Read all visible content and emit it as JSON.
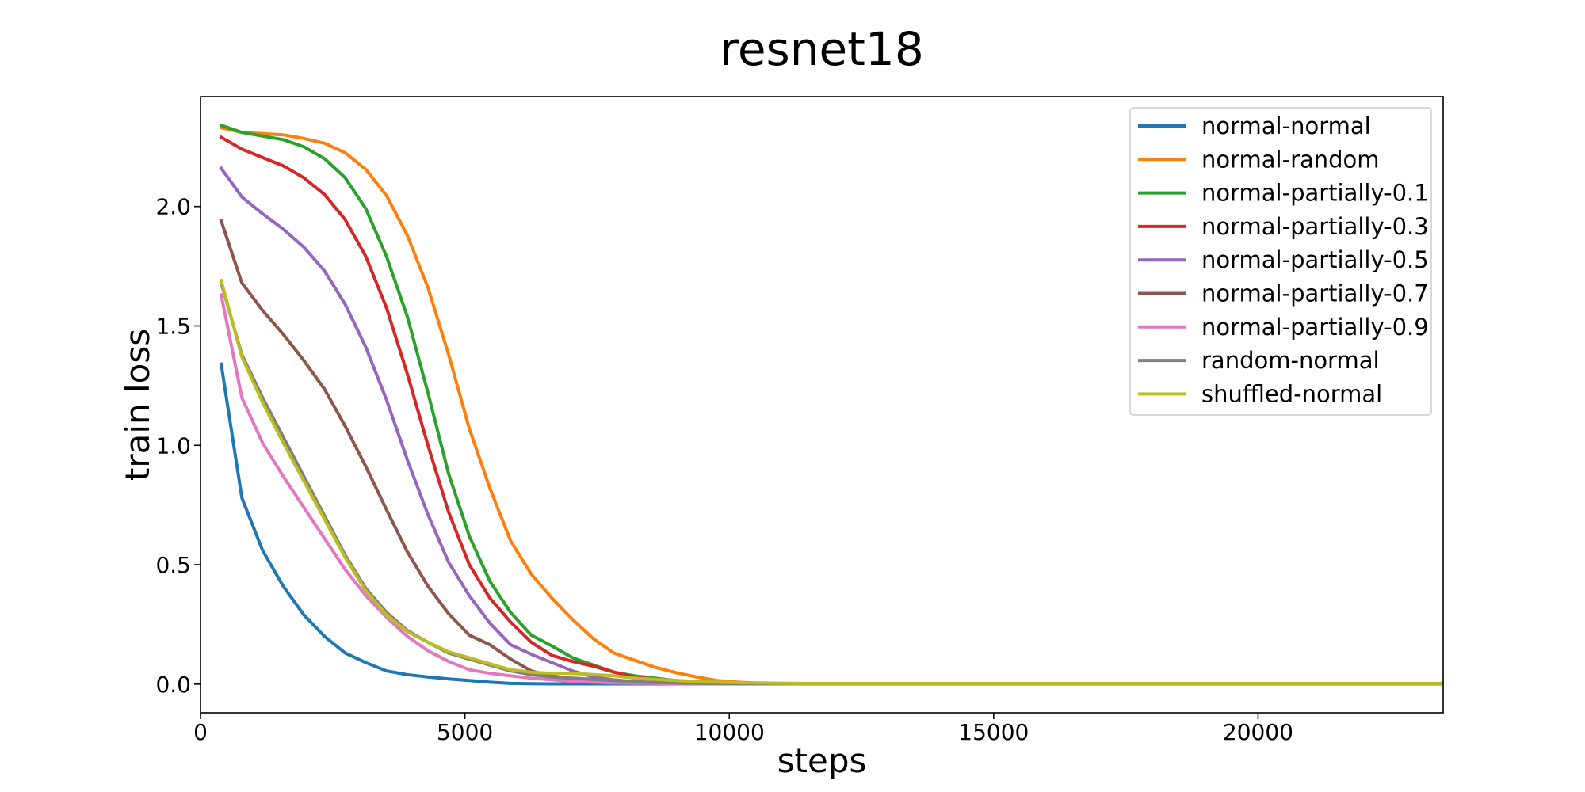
{
  "chart_data": {
    "type": "line",
    "title": "resnet18",
    "xlabel": "steps",
    "ylabel": "train loss",
    "xlim": [
      0,
      23500
    ],
    "ylim": [
      -0.12,
      2.46
    ],
    "xticks": [
      0,
      5000,
      10000,
      15000,
      20000
    ],
    "xtick_labels": [
      "0",
      "5000",
      "10000",
      "15000",
      "20000"
    ],
    "yticks": [
      0.0,
      0.5,
      1.0,
      1.5,
      2.0
    ],
    "ytick_labels": [
      "0.0",
      "0.5",
      "1.0",
      "1.5",
      "2.0"
    ],
    "grid": false,
    "legend_position": "top-right",
    "x": [
      391,
      782,
      1173,
      1564,
      1955,
      2346,
      2737,
      3128,
      3519,
      3910,
      4301,
      4692,
      5083,
      5474,
      5865,
      6256,
      6647,
      7038,
      7429,
      7820,
      8211,
      8602,
      8993,
      9384,
      9775,
      10166,
      10557,
      10948,
      11339,
      11730,
      12121,
      12512,
      12903,
      13294,
      13685,
      14076,
      14467,
      14858,
      15249,
      15640,
      16031,
      16422,
      16813,
      17204,
      17595,
      17986,
      18377,
      18768,
      19159,
      19550,
      19941,
      20332,
      20723,
      21114,
      21505,
      21896,
      22287,
      22678,
      23069,
      23460
    ],
    "series": [
      {
        "name": "normal-normal",
        "color": "#1f77b4",
        "values": [
          1.34,
          0.78,
          0.56,
          0.41,
          0.29,
          0.2,
          0.13,
          0.09,
          0.055,
          0.04,
          0.03,
          0.022,
          0.015,
          0.008,
          0.003,
          0.002,
          0.001,
          0.001,
          0.001,
          0.001,
          0.001,
          0.001,
          0.001,
          0.001,
          0.001,
          0.001,
          0.001,
          0.001,
          0.001,
          0.001,
          0.001,
          0.001,
          0.001,
          0.001,
          0.001,
          0.001,
          0.001,
          0.001,
          0.001,
          0.001,
          0.001,
          0.001,
          0.001,
          0.001,
          0.001,
          0.001,
          0.001,
          0.001,
          0.001,
          0.001,
          0.001,
          0.001,
          0.001,
          0.001,
          0.001,
          0.001,
          0.001,
          0.001,
          0.001,
          0.001
        ]
      },
      {
        "name": "normal-random",
        "color": "#ff7f0e",
        "values": [
          2.33,
          2.31,
          2.305,
          2.3,
          2.285,
          2.265,
          2.225,
          2.155,
          2.045,
          1.88,
          1.66,
          1.38,
          1.07,
          0.82,
          0.6,
          0.46,
          0.36,
          0.27,
          0.19,
          0.13,
          0.1,
          0.07,
          0.048,
          0.03,
          0.015,
          0.008,
          0.004,
          0.002,
          0.002,
          0.002,
          0.002,
          0.002,
          0.002,
          0.002,
          0.002,
          0.002,
          0.002,
          0.002,
          0.002,
          0.002,
          0.002,
          0.002,
          0.002,
          0.002,
          0.002,
          0.002,
          0.002,
          0.002,
          0.002,
          0.002,
          0.002,
          0.002,
          0.002,
          0.002,
          0.002,
          0.002,
          0.002,
          0.002,
          0.002,
          0.002
        ]
      },
      {
        "name": "normal-partially-0.1",
        "color": "#2ca02c",
        "values": [
          2.34,
          2.31,
          2.295,
          2.28,
          2.25,
          2.2,
          2.12,
          1.99,
          1.79,
          1.54,
          1.22,
          0.88,
          0.62,
          0.43,
          0.3,
          0.205,
          0.16,
          0.11,
          0.08,
          0.05,
          0.035,
          0.025,
          0.015,
          0.01,
          0.006,
          0.004,
          0.003,
          0.002,
          0.002,
          0.002,
          0.002,
          0.002,
          0.002,
          0.002,
          0.002,
          0.002,
          0.002,
          0.002,
          0.002,
          0.002,
          0.002,
          0.002,
          0.002,
          0.002,
          0.002,
          0.002,
          0.002,
          0.002,
          0.002,
          0.002,
          0.002,
          0.002,
          0.002,
          0.002,
          0.002,
          0.002,
          0.002,
          0.002,
          0.002,
          0.002
        ]
      },
      {
        "name": "normal-partially-0.3",
        "color": "#d62728",
        "values": [
          2.29,
          2.24,
          2.205,
          2.17,
          2.12,
          2.05,
          1.945,
          1.79,
          1.575,
          1.3,
          1.0,
          0.72,
          0.5,
          0.36,
          0.26,
          0.175,
          0.12,
          0.095,
          0.075,
          0.05,
          0.03,
          0.02,
          0.012,
          0.008,
          0.005,
          0.004,
          0.003,
          0.002,
          0.002,
          0.002,
          0.002,
          0.002,
          0.002,
          0.002,
          0.002,
          0.002,
          0.002,
          0.002,
          0.002,
          0.002,
          0.002,
          0.002,
          0.002,
          0.002,
          0.002,
          0.002,
          0.002,
          0.002,
          0.002,
          0.002,
          0.002,
          0.002,
          0.002,
          0.002,
          0.002,
          0.002,
          0.002,
          0.002,
          0.002,
          0.002
        ]
      },
      {
        "name": "normal-partially-0.5",
        "color": "#9467bd",
        "values": [
          2.16,
          2.04,
          1.97,
          1.905,
          1.83,
          1.73,
          1.59,
          1.41,
          1.19,
          0.94,
          0.71,
          0.51,
          0.37,
          0.255,
          0.165,
          0.125,
          0.09,
          0.055,
          0.03,
          0.018,
          0.01,
          0.007,
          0.005,
          0.004,
          0.003,
          0.002,
          0.002,
          0.002,
          0.002,
          0.002,
          0.002,
          0.002,
          0.002,
          0.002,
          0.002,
          0.002,
          0.002,
          0.002,
          0.002,
          0.002,
          0.002,
          0.002,
          0.002,
          0.002,
          0.002,
          0.002,
          0.002,
          0.002,
          0.002,
          0.002,
          0.002,
          0.002,
          0.002,
          0.002,
          0.002,
          0.002,
          0.002,
          0.002,
          0.002,
          0.002
        ]
      },
      {
        "name": "normal-partially-0.7",
        "color": "#8c564b",
        "values": [
          1.94,
          1.68,
          1.565,
          1.465,
          1.355,
          1.235,
          1.08,
          0.91,
          0.73,
          0.555,
          0.41,
          0.295,
          0.205,
          0.165,
          0.105,
          0.055,
          0.035,
          0.02,
          0.012,
          0.008,
          0.005,
          0.004,
          0.003,
          0.002,
          0.002,
          0.002,
          0.002,
          0.002,
          0.002,
          0.002,
          0.002,
          0.002,
          0.002,
          0.002,
          0.002,
          0.002,
          0.002,
          0.002,
          0.002,
          0.002,
          0.002,
          0.002,
          0.002,
          0.002,
          0.002,
          0.002,
          0.002,
          0.002,
          0.002,
          0.002,
          0.002,
          0.002,
          0.002,
          0.002,
          0.002,
          0.002,
          0.002,
          0.002,
          0.002,
          0.002
        ]
      },
      {
        "name": "normal-partially-0.9",
        "color": "#e377c2",
        "values": [
          1.63,
          1.2,
          1.01,
          0.87,
          0.74,
          0.61,
          0.48,
          0.37,
          0.28,
          0.2,
          0.14,
          0.095,
          0.06,
          0.045,
          0.035,
          0.025,
          0.018,
          0.012,
          0.008,
          0.005,
          0.004,
          0.003,
          0.002,
          0.002,
          0.002,
          0.002,
          0.002,
          0.002,
          0.002,
          0.002,
          0.002,
          0.002,
          0.002,
          0.002,
          0.002,
          0.002,
          0.002,
          0.002,
          0.002,
          0.002,
          0.002,
          0.002,
          0.002,
          0.002,
          0.002,
          0.002,
          0.002,
          0.002,
          0.002,
          0.002,
          0.002,
          0.002,
          0.002,
          0.002,
          0.002,
          0.002,
          0.002,
          0.002,
          0.002,
          0.002
        ]
      },
      {
        "name": "random-normal",
        "color": "#7f7f7f",
        "values": [
          1.68,
          1.38,
          1.2,
          1.035,
          0.87,
          0.705,
          0.54,
          0.4,
          0.3,
          0.225,
          0.175,
          0.13,
          0.105,
          0.08,
          0.055,
          0.04,
          0.03,
          0.025,
          0.02,
          0.015,
          0.01,
          0.007,
          0.005,
          0.004,
          0.003,
          0.002,
          0.002,
          0.002,
          0.002,
          0.002,
          0.002,
          0.002,
          0.002,
          0.002,
          0.002,
          0.002,
          0.002,
          0.002,
          0.002,
          0.002,
          0.002,
          0.002,
          0.002,
          0.002,
          0.002,
          0.002,
          0.002,
          0.002,
          0.002,
          0.002,
          0.002,
          0.002,
          0.002,
          0.002,
          0.002,
          0.002,
          0.002,
          0.002,
          0.002,
          0.002
        ]
      },
      {
        "name": "shuffled-normal",
        "color": "#bcbd22",
        "values": [
          1.69,
          1.37,
          1.18,
          1.01,
          0.85,
          0.69,
          0.53,
          0.39,
          0.29,
          0.22,
          0.175,
          0.135,
          0.11,
          0.085,
          0.06,
          0.05,
          0.045,
          0.045,
          0.04,
          0.035,
          0.025,
          0.02,
          0.015,
          0.01,
          0.008,
          0.006,
          0.005,
          0.004,
          0.003,
          0.003,
          0.003,
          0.003,
          0.003,
          0.003,
          0.003,
          0.003,
          0.003,
          0.003,
          0.003,
          0.003,
          0.003,
          0.003,
          0.003,
          0.003,
          0.003,
          0.003,
          0.003,
          0.003,
          0.003,
          0.003,
          0.003,
          0.003,
          0.003,
          0.003,
          0.003,
          0.003,
          0.003,
          0.003,
          0.003,
          0.003
        ]
      }
    ]
  }
}
